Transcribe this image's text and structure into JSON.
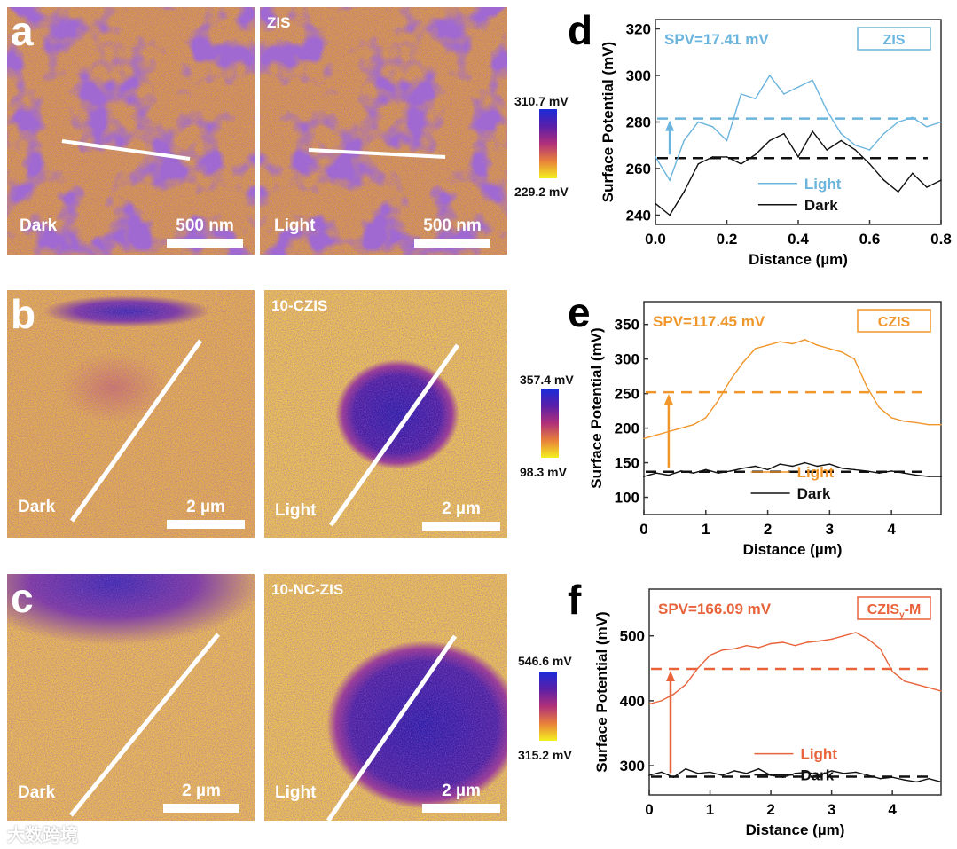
{
  "panels": [
    {
      "letter": "a",
      "sample": "ZIS",
      "dark_label": "Dark",
      "light_label": "Light",
      "scale": "500 nm",
      "cbar_max": "310.7 mV",
      "cbar_min": "229.2 mV"
    },
    {
      "letter": "b",
      "sample": "10-CZIS",
      "dark_label": "Dark",
      "light_label": "Light",
      "scale": "2 µm",
      "cbar_max": "357.4 mV",
      "cbar_min": "98.3 mV"
    },
    {
      "letter": "c",
      "sample": "10-NC-ZIS",
      "dark_label": "Dark",
      "light_label": "Light",
      "scale": "2 µm",
      "cbar_max": "546.6 mV",
      "cbar_min": "315.2 mV"
    }
  ],
  "watermark": "大数跨境",
  "chart_data": [
    {
      "type": "line",
      "letter": "d",
      "spv": "SPV=17.41 mV",
      "sample": "ZIS",
      "sample_sub": "",
      "sample_suffix": "",
      "color": "#6ab4de",
      "xlabel": "Distance (µm)",
      "ylabel": "Surface Potential (mV)",
      "xlim": [
        0,
        0.8
      ],
      "ylim": [
        236,
        324
      ],
      "xticks": [
        0.0,
        0.2,
        0.4,
        0.6,
        0.8
      ],
      "xtick_labels": [
        "0.0",
        "0.2",
        "0.4",
        "0.6",
        "0.8"
      ],
      "yticks": [
        240,
        260,
        280,
        300,
        320
      ],
      "legend": [
        "Light",
        "Dark"
      ],
      "light_mean": 281.5,
      "dark_mean": 264.5,
      "arrow_x": 0.04,
      "x": [
        0,
        0.04,
        0.08,
        0.12,
        0.16,
        0.2,
        0.24,
        0.28,
        0.32,
        0.36,
        0.4,
        0.44,
        0.48,
        0.52,
        0.56,
        0.6,
        0.64,
        0.68,
        0.72,
        0.76,
        0.8
      ],
      "series": [
        {
          "name": "Light",
          "values": [
            265,
            255,
            272,
            280,
            278,
            272,
            292,
            290,
            300,
            292,
            295,
            298,
            285,
            275,
            270,
            268,
            275,
            280,
            282,
            278,
            280
          ]
        },
        {
          "name": "Dark",
          "values": [
            245,
            240,
            250,
            262,
            265,
            265,
            262,
            266,
            272,
            275,
            265,
            276,
            268,
            272,
            268,
            262,
            255,
            250,
            258,
            252,
            255
          ]
        }
      ]
    },
    {
      "type": "line",
      "letter": "e",
      "spv": "SPV=117.45 mV",
      "sample": "CZIS",
      "sample_sub": "",
      "sample_suffix": "",
      "color": "#f0962a",
      "xlabel": "Distance (µm)",
      "ylabel": "Surface Potential (mV)",
      "xlim": [
        0,
        4.8
      ],
      "ylim": [
        75,
        383
      ],
      "xticks": [
        0,
        1,
        2,
        3,
        4
      ],
      "xtick_labels": [
        "0",
        "1",
        "2",
        "3",
        "4"
      ],
      "yticks": [
        100,
        150,
        200,
        250,
        300,
        350
      ],
      "legend": [
        "Light",
        "Dark"
      ],
      "light_mean": 252,
      "dark_mean": 137,
      "arrow_x": 0.4,
      "x": [
        0,
        0.2,
        0.4,
        0.6,
        0.8,
        1.0,
        1.2,
        1.4,
        1.6,
        1.8,
        2.0,
        2.2,
        2.4,
        2.6,
        2.8,
        3.0,
        3.2,
        3.4,
        3.6,
        3.8,
        4.0,
        4.2,
        4.4,
        4.6,
        4.8
      ],
      "series": [
        {
          "name": "Light",
          "values": [
            185,
            190,
            195,
            200,
            205,
            215,
            240,
            270,
            295,
            315,
            320,
            325,
            322,
            328,
            320,
            315,
            310,
            300,
            260,
            230,
            215,
            210,
            208,
            205,
            205
          ]
        },
        {
          "name": "Dark",
          "values": [
            130,
            135,
            132,
            138,
            135,
            140,
            135,
            138,
            142,
            145,
            140,
            148,
            145,
            150,
            145,
            148,
            142,
            140,
            138,
            135,
            138,
            135,
            132,
            130,
            130
          ]
        }
      ]
    },
    {
      "type": "line",
      "letter": "f",
      "spv": "SPV=166.09 mV",
      "sample": "CZIS",
      "sample_sub": "y",
      "sample_suffix": "-M",
      "color": "#e8633a",
      "xlabel": "Distance (µm)",
      "ylabel": "Surface Potential (mV)",
      "xlim": [
        0,
        4.8
      ],
      "ylim": [
        255,
        572
      ],
      "xticks": [
        0,
        1,
        2,
        3,
        4
      ],
      "xtick_labels": [
        "0",
        "1",
        "2",
        "3",
        "4"
      ],
      "yticks": [
        300,
        400,
        500
      ],
      "legend": [
        "Light",
        "Dark"
      ],
      "light_mean": 449,
      "dark_mean": 283,
      "arrow_x": 0.35,
      "x": [
        0,
        0.2,
        0.4,
        0.6,
        0.8,
        1.0,
        1.2,
        1.4,
        1.6,
        1.8,
        2.0,
        2.2,
        2.4,
        2.6,
        2.8,
        3.0,
        3.2,
        3.4,
        3.6,
        3.8,
        4.0,
        4.2,
        4.4,
        4.6,
        4.8
      ],
      "series": [
        {
          "name": "Light",
          "values": [
            395,
            400,
            410,
            425,
            450,
            470,
            478,
            480,
            485,
            482,
            488,
            490,
            485,
            490,
            492,
            495,
            500,
            505,
            495,
            480,
            445,
            430,
            425,
            420,
            415
          ]
        },
        {
          "name": "Dark",
          "values": [
            285,
            290,
            282,
            295,
            288,
            290,
            285,
            292,
            288,
            295,
            285,
            282,
            288,
            290,
            285,
            292,
            288,
            290,
            285,
            280,
            282,
            278,
            275,
            280,
            275
          ]
        }
      ]
    }
  ]
}
